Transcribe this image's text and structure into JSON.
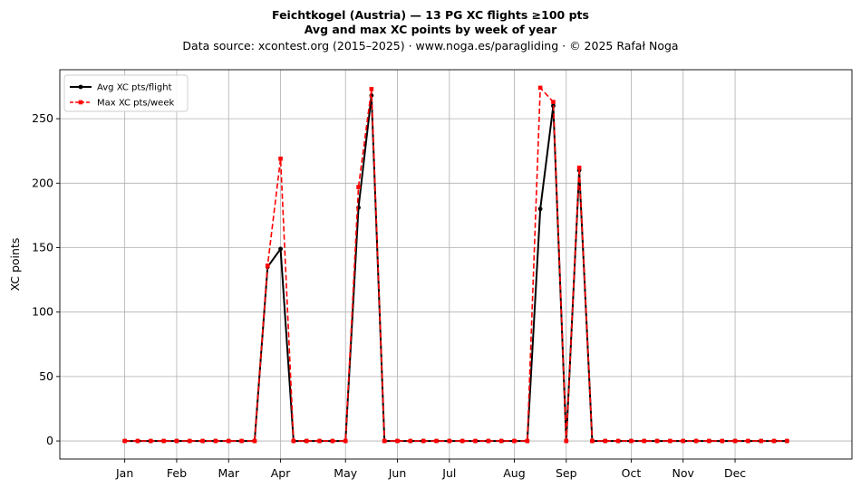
{
  "chart_data": {
    "type": "line",
    "title": "Feichtkogel (Austria)  —  13 PG XC flights ≥100 pts",
    "subtitle": "Avg and max XC points by week of year",
    "source_line": "Data source: xcontest.org (2015–2025)  ·  www.noga.es/paragliding  ·  © 2025 Rafał Noga",
    "ylabel": "XC points",
    "xlim": [
      -5,
      56
    ],
    "ylim": [
      -14,
      288
    ],
    "yticks": [
      0,
      50,
      100,
      150,
      200,
      250
    ],
    "xticks": [
      {
        "week": 0,
        "label": "Jan"
      },
      {
        "week": 4,
        "label": "Feb"
      },
      {
        "week": 8,
        "label": "Mar"
      },
      {
        "week": 12,
        "label": "Apr"
      },
      {
        "week": 17,
        "label": "May"
      },
      {
        "week": 21,
        "label": "Jun"
      },
      {
        "week": 25,
        "label": "Jul"
      },
      {
        "week": 30,
        "label": "Aug"
      },
      {
        "week": 34,
        "label": "Sep"
      },
      {
        "week": 39,
        "label": "Oct"
      },
      {
        "week": 43,
        "label": "Nov"
      },
      {
        "week": 47,
        "label": "Dec"
      }
    ],
    "grid": true,
    "legend_position": "top-left",
    "x": [
      0,
      1,
      2,
      3,
      4,
      5,
      6,
      7,
      8,
      9,
      10,
      11,
      12,
      13,
      14,
      15,
      16,
      17,
      18,
      19,
      20,
      21,
      22,
      23,
      24,
      25,
      26,
      27,
      28,
      29,
      30,
      31,
      32,
      33,
      34,
      35,
      36,
      37,
      38,
      39,
      40,
      41,
      42,
      43,
      44,
      45,
      46,
      47,
      48,
      49,
      50,
      51
    ],
    "series": [
      {
        "name": "Avg XC pts/flight",
        "color": "#000000",
        "style": "solid-circle",
        "values": [
          0,
          0,
          0,
          0,
          0,
          0,
          0,
          0,
          0,
          0,
          0,
          135,
          149,
          0,
          0,
          0,
          0,
          0,
          181,
          268,
          0,
          0,
          0,
          0,
          0,
          0,
          0,
          0,
          0,
          0,
          0,
          0,
          180,
          260,
          0,
          210,
          0,
          0,
          0,
          0,
          0,
          0,
          0,
          0,
          0,
          0,
          0,
          0,
          0,
          0,
          0,
          0
        ]
      },
      {
        "name": "Max XC pts/week",
        "color": "#ff0000",
        "style": "dashed-square",
        "values": [
          0,
          0,
          0,
          0,
          0,
          0,
          0,
          0,
          0,
          0,
          0,
          136,
          219,
          0,
          0,
          0,
          0,
          0,
          197,
          273,
          0,
          0,
          0,
          0,
          0,
          0,
          0,
          0,
          0,
          0,
          0,
          0,
          274,
          263,
          0,
          212,
          0,
          0,
          0,
          0,
          0,
          0,
          0,
          0,
          0,
          0,
          0,
          0,
          0,
          0,
          0,
          0
        ]
      }
    ]
  }
}
